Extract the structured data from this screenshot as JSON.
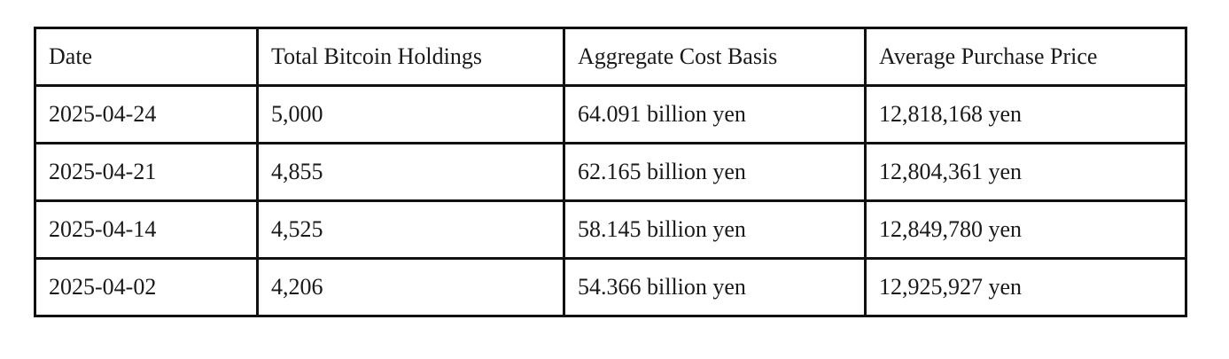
{
  "table": {
    "header": [
      "Date",
      "Total Bitcoin Holdings",
      "Aggregate Cost Basis",
      "Average Purchase Price"
    ],
    "rows": [
      [
        "2025-04-24",
        "5,000",
        "64.091 billion yen",
        "12,818,168 yen"
      ],
      [
        "2025-04-21",
        "4,855",
        "62.165 billion yen",
        "12,804,361 yen"
      ],
      [
        "2025-04-14",
        "4,525",
        "58.145 billion yen",
        "12,849,780 yen"
      ],
      [
        "2025-04-02",
        "4,206",
        "54.366 billion yen",
        "12,925,927 yen"
      ]
    ]
  }
}
